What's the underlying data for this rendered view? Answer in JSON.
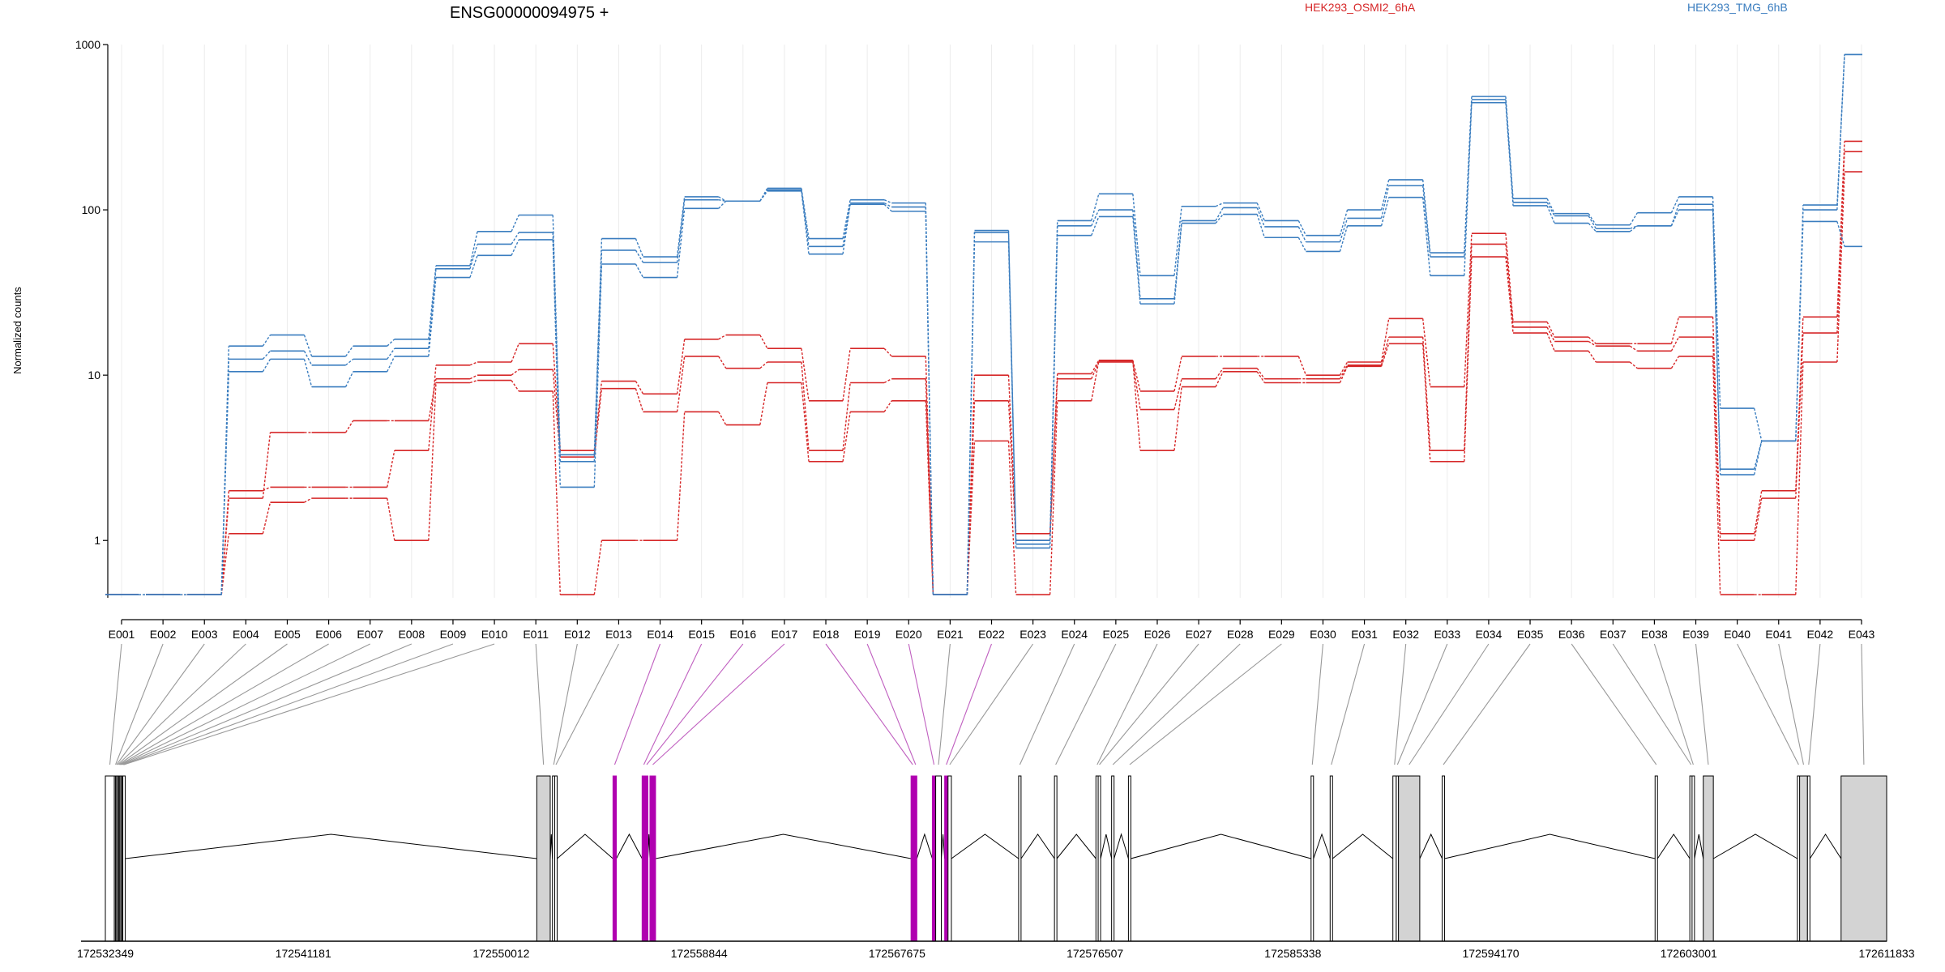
{
  "title": "ENSG00000094975 +",
  "legend": {
    "group_a": {
      "label": "HEK293_OSMI2_6hA",
      "color": "#d62728"
    },
    "group_b": {
      "label": "HEK293_TMG_6hB",
      "color": "#3a7dbf"
    }
  },
  "colors": {
    "exon_highlight": "#b000b0",
    "exon_highlight_line": "#c060c0",
    "exon_fill": "#d3d3d3"
  },
  "chart_data": {
    "type": "line",
    "ylabel": "Normalized counts",
    "yscale": "log",
    "ylim": [
      0.45,
      1000
    ],
    "yticks": [
      1,
      10,
      100,
      1000
    ],
    "ytick_labels": [
      "1",
      "10",
      "100",
      "1000"
    ],
    "categories": [
      "E001",
      "E002",
      "E003",
      "E004",
      "E005",
      "E006",
      "E007",
      "E008",
      "E009",
      "E010",
      "E011",
      "E012",
      "E013",
      "E014",
      "E015",
      "E016",
      "E017",
      "E018",
      "E019",
      "E020",
      "E021",
      "E022",
      "E023",
      "E024",
      "E025",
      "E026",
      "E027",
      "E028",
      "E029",
      "E030",
      "E031",
      "E032",
      "E033",
      "E034",
      "E035",
      "E036",
      "E037",
      "E038",
      "E039",
      "E040",
      "E041",
      "E042",
      "E043"
    ],
    "series": [
      {
        "group": "group_a",
        "values": [
          0.47,
          0.47,
          0.47,
          2.0,
          2.1,
          2.1,
          2.1,
          3.5,
          11.5,
          12.0,
          15.5,
          3.5,
          9.2,
          7.7,
          16.5,
          17.5,
          14.5,
          7.0,
          14.5,
          13.0,
          0.47,
          10.0,
          1.1,
          10.2,
          12.3,
          8.0,
          13.0,
          13.0,
          13.0,
          10.0,
          12.0,
          22.0,
          8.5,
          72.0,
          21.0,
          17.0,
          15.5,
          15.5,
          22.5,
          1.1,
          2.0,
          22.5,
          260.0
        ]
      },
      {
        "group": "group_a",
        "values": [
          0.47,
          0.47,
          0.47,
          1.8,
          4.5,
          4.5,
          5.3,
          5.3,
          9.5,
          10.0,
          10.8,
          3.2,
          8.3,
          6.0,
          13.0,
          11.0,
          12.0,
          3.5,
          9.0,
          9.5,
          0.47,
          7.0,
          1.0,
          9.5,
          12.0,
          6.2,
          9.5,
          11.0,
          9.5,
          9.5,
          11.5,
          17.0,
          3.5,
          62.0,
          19.5,
          16.0,
          15.0,
          14.0,
          17.0,
          1.0,
          1.8,
          18.0,
          225.0
        ]
      },
      {
        "group": "group_a",
        "values": [
          0.47,
          0.47,
          0.47,
          1.1,
          1.7,
          1.8,
          1.8,
          1.0,
          9.0,
          9.3,
          8.0,
          0.47,
          1.0,
          1.0,
          6.0,
          5.0,
          9.0,
          3.0,
          6.0,
          7.0,
          0.47,
          4.0,
          0.47,
          7.0,
          12.2,
          3.5,
          8.5,
          10.5,
          9.0,
          9.0,
          11.3,
          15.5,
          3.0,
          52.0,
          18.0,
          14.0,
          12.0,
          11.0,
          13.0,
          0.47,
          0.47,
          12.0,
          170.0
        ]
      },
      {
        "group": "group_b",
        "values": [
          0.47,
          0.47,
          0.47,
          15.0,
          17.5,
          13.0,
          15.0,
          16.5,
          46.0,
          74.0,
          93.0,
          3.3,
          67.0,
          52.0,
          120.0,
          113.0,
          135.0,
          67.0,
          115.0,
          110.0,
          0.47,
          75.0,
          1.0,
          86.0,
          125.0,
          40.0,
          105.0,
          110.0,
          86.0,
          70.0,
          100.0,
          152.0,
          55.0,
          485.0,
          117.0,
          95.0,
          81.0,
          96.0,
          120.0,
          6.3,
          4.0,
          107.0,
          870.0
        ]
      },
      {
        "group": "group_b",
        "values": [
          0.47,
          0.47,
          0.47,
          12.5,
          14.0,
          11.5,
          12.5,
          14.5,
          44.0,
          62.0,
          73.0,
          3.0,
          57.0,
          48.0,
          115.0,
          113.0,
          132.0,
          60.0,
          110.0,
          104.0,
          0.47,
          73.0,
          0.95,
          80.0,
          100.0,
          29.0,
          86.0,
          103.0,
          79.0,
          64.0,
          89.0,
          140.0,
          52.0,
          465.0,
          111.0,
          92.0,
          77.0,
          80.0,
          108.0,
          2.7,
          4.0,
          100.0,
          870.0
        ]
      },
      {
        "group": "group_b",
        "values": [
          0.47,
          0.47,
          0.47,
          10.5,
          12.5,
          8.5,
          10.5,
          13.0,
          39.0,
          53.0,
          66.0,
          2.1,
          47.0,
          39.0,
          102.0,
          113.0,
          130.0,
          54.0,
          108.0,
          98.0,
          0.47,
          64.0,
          0.9,
          70.0,
          91.0,
          27.0,
          83.0,
          94.0,
          68.0,
          56.0,
          80.0,
          119.0,
          40.0,
          445.0,
          106.0,
          83.0,
          74.0,
          80.0,
          100.0,
          2.5,
          4.0,
          85.0,
          60.0
        ]
      }
    ],
    "coordinate_axis": {
      "labels": [
        "172532349",
        "172541181",
        "172550012",
        "172558844",
        "172567675",
        "172576507",
        "172585338",
        "172594170",
        "172603001",
        "172611833"
      ],
      "range": [
        172532349,
        172611833
      ]
    },
    "exons": [
      {
        "id": "E001",
        "start": 172532349,
        "end": 172532749,
        "highlighted": false,
        "filled": false
      },
      {
        "id": "E002",
        "start": 172532749,
        "end": 172532799,
        "highlighted": false,
        "filled": false
      },
      {
        "id": "E003",
        "start": 172532799,
        "end": 172532849,
        "highlighted": false,
        "filled": false
      },
      {
        "id": "E004",
        "start": 172532849,
        "end": 172532899,
        "highlighted": false,
        "filled": false
      },
      {
        "id": "E005",
        "start": 172532899,
        "end": 172532949,
        "highlighted": false,
        "filled": false
      },
      {
        "id": "E006",
        "start": 172532949,
        "end": 172532989,
        "highlighted": false,
        "filled": false
      },
      {
        "id": "E007",
        "start": 172532989,
        "end": 172533039,
        "highlighted": false,
        "filled": false
      },
      {
        "id": "E008",
        "start": 172533039,
        "end": 172533089,
        "highlighted": false,
        "filled": false
      },
      {
        "id": "E009",
        "start": 172533089,
        "end": 172533129,
        "highlighted": false,
        "filled": false
      },
      {
        "id": "E010",
        "start": 172533129,
        "end": 172533189,
        "highlighted": false,
        "filled": false
      },
      {
        "id": "E011",
        "start": 172551600,
        "end": 172552200,
        "highlighted": false,
        "filled": true
      },
      {
        "id": "E012",
        "start": 172552300,
        "end": 172552400,
        "highlighted": false,
        "filled": false
      },
      {
        "id": "E013",
        "start": 172552400,
        "end": 172552500,
        "highlighted": false,
        "filled": false
      },
      {
        "id": "E014",
        "start": 172555000,
        "end": 172555150,
        "highlighted": true,
        "filled": false
      },
      {
        "id": "E015",
        "start": 172556300,
        "end": 172556450,
        "highlighted": true,
        "filled": false
      },
      {
        "id": "E016",
        "start": 172556450,
        "end": 172556550,
        "highlighted": true,
        "filled": false
      },
      {
        "id": "E017",
        "start": 172556650,
        "end": 172556900,
        "highlighted": true,
        "filled": false
      },
      {
        "id": "E018",
        "start": 172568300,
        "end": 172568450,
        "highlighted": true,
        "filled": false
      },
      {
        "id": "E019",
        "start": 172568450,
        "end": 172568550,
        "highlighted": true,
        "filled": false
      },
      {
        "id": "E020",
        "start": 172569250,
        "end": 172569400,
        "highlighted": true,
        "filled": false
      },
      {
        "id": "E021",
        "start": 172569400,
        "end": 172569650,
        "highlighted": false,
        "filled": false
      },
      {
        "id": "E022",
        "start": 172569800,
        "end": 172569950,
        "highlighted": true,
        "filled": false
      },
      {
        "id": "E023",
        "start": 172569950,
        "end": 172570100,
        "highlighted": false,
        "filled": false
      },
      {
        "id": "E024",
        "start": 172573100,
        "end": 172573200,
        "highlighted": false,
        "filled": false
      },
      {
        "id": "E025",
        "start": 172574700,
        "end": 172574800,
        "highlighted": false,
        "filled": false
      },
      {
        "id": "E026",
        "start": 172576550,
        "end": 172576650,
        "highlighted": false,
        "filled": false
      },
      {
        "id": "E027",
        "start": 172576650,
        "end": 172576750,
        "highlighted": false,
        "filled": false
      },
      {
        "id": "E028",
        "start": 172577250,
        "end": 172577350,
        "highlighted": false,
        "filled": false
      },
      {
        "id": "E029",
        "start": 172578000,
        "end": 172578100,
        "highlighted": false,
        "filled": false
      },
      {
        "id": "E030",
        "start": 172586150,
        "end": 172586250,
        "highlighted": false,
        "filled": false
      },
      {
        "id": "E031",
        "start": 172587000,
        "end": 172587100,
        "highlighted": false,
        "filled": false
      },
      {
        "id": "E032",
        "start": 172589800,
        "end": 172589950,
        "highlighted": false,
        "filled": false
      },
      {
        "id": "E033",
        "start": 172589950,
        "end": 172590050,
        "highlighted": false,
        "filled": false
      },
      {
        "id": "E034",
        "start": 172590050,
        "end": 172591000,
        "highlighted": false,
        "filled": true
      },
      {
        "id": "E035",
        "start": 172592000,
        "end": 172592100,
        "highlighted": false,
        "filled": false
      },
      {
        "id": "E036",
        "start": 172601500,
        "end": 172601600,
        "highlighted": false,
        "filled": false
      },
      {
        "id": "E037",
        "start": 172603050,
        "end": 172603150,
        "highlighted": false,
        "filled": false
      },
      {
        "id": "E038",
        "start": 172603150,
        "end": 172603250,
        "highlighted": false,
        "filled": false
      },
      {
        "id": "E039",
        "start": 172603650,
        "end": 172604100,
        "highlighted": false,
        "filled": true
      },
      {
        "id": "E040",
        "start": 172607850,
        "end": 172607950,
        "highlighted": false,
        "filled": false
      },
      {
        "id": "E041",
        "start": 172607950,
        "end": 172608300,
        "highlighted": false,
        "filled": true
      },
      {
        "id": "E042",
        "start": 172608300,
        "end": 172608400,
        "highlighted": false,
        "filled": false
      },
      {
        "id": "E043",
        "start": 172609800,
        "end": 172611833,
        "highlighted": false,
        "filled": true
      }
    ]
  }
}
